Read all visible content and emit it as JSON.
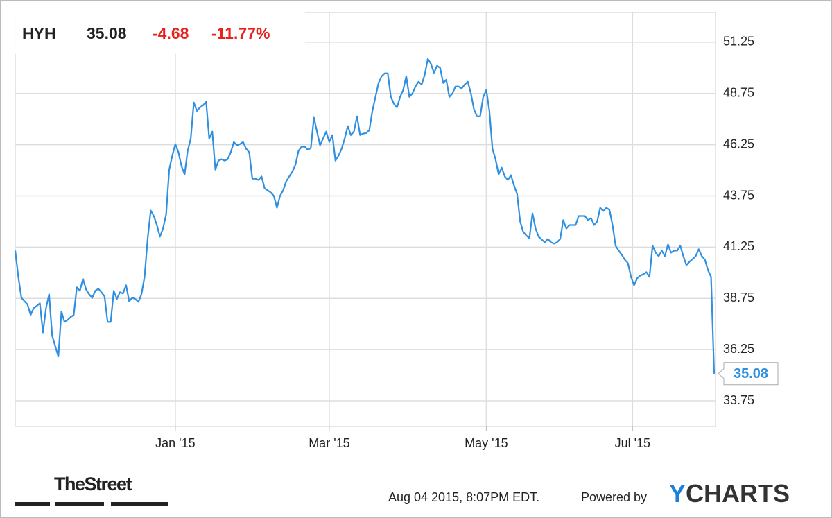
{
  "chart_data": {
    "type": "line",
    "ticker": "HYH",
    "price": "35.08",
    "change": "-4.68",
    "change_pct": "-11.77%",
    "series": [
      {
        "color": "#2f8fe0",
        "values": [
          41.08,
          39.8,
          38.78,
          38.61,
          38.45,
          37.94,
          38.28,
          38.38,
          38.51,
          37.09,
          38.28,
          38.95,
          36.92,
          36.42,
          35.91,
          38.11,
          37.6,
          37.7,
          37.84,
          37.94,
          39.29,
          39.12,
          39.7,
          39.19,
          38.95,
          38.78,
          39.12,
          39.22,
          39.05,
          38.85,
          37.6,
          37.6,
          39.12,
          38.72,
          39.05,
          38.99,
          39.39,
          38.61,
          38.78,
          38.72,
          38.58,
          38.95,
          39.8,
          41.65,
          43.04,
          42.77,
          42.33,
          41.76,
          42.16,
          42.84,
          45.03,
          45.71,
          46.28,
          45.88,
          45.2,
          44.8,
          45.95,
          46.55,
          48.31,
          47.9,
          48.07,
          48.17,
          48.34,
          46.55,
          46.89,
          45.03,
          45.47,
          45.54,
          45.47,
          45.54,
          45.88,
          46.38,
          46.22,
          46.28,
          46.38,
          46.05,
          45.88,
          44.59,
          44.59,
          44.53,
          44.7,
          44.12,
          44.02,
          43.92,
          43.75,
          43.17,
          43.75,
          44.02,
          44.46,
          44.7,
          44.93,
          45.27,
          45.95,
          46.15,
          46.15,
          46.01,
          46.08,
          47.57,
          46.89,
          46.22,
          46.55,
          46.89,
          46.38,
          46.72,
          45.47,
          45.71,
          46.05,
          46.55,
          47.16,
          46.72,
          46.89,
          47.63,
          46.72,
          46.79,
          46.82,
          46.96,
          47.9,
          48.58,
          49.26,
          49.59,
          49.73,
          49.73,
          48.58,
          48.24,
          48.07,
          48.58,
          48.92,
          49.59,
          48.58,
          48.75,
          49.09,
          49.32,
          49.19,
          49.66,
          50.44,
          50.2,
          49.76,
          50.1,
          50.0,
          49.26,
          49.42,
          48.58,
          48.75,
          49.09,
          49.09,
          48.99,
          49.19,
          49.32,
          48.75,
          47.97,
          47.63,
          47.63,
          48.58,
          48.92,
          47.9,
          46.05,
          45.54,
          44.8,
          45.13,
          44.7,
          44.53,
          44.76,
          44.26,
          43.85,
          42.5,
          41.99,
          41.82,
          41.69,
          42.9,
          42.16,
          41.76,
          41.62,
          41.49,
          41.65,
          41.49,
          41.42,
          41.49,
          41.65,
          42.57,
          42.16,
          42.33,
          42.33,
          42.33,
          42.77,
          42.77,
          42.77,
          42.57,
          42.67,
          42.33,
          42.5,
          43.17,
          43.01,
          43.17,
          43.07,
          42.33,
          41.32,
          41.08,
          40.88,
          40.64,
          40.47,
          39.8,
          39.39,
          39.73,
          39.86,
          39.93,
          40.03,
          39.8,
          41.32,
          40.98,
          40.81,
          41.08,
          40.81,
          41.38,
          40.98,
          41.08,
          41.08,
          41.32,
          40.81,
          40.37,
          40.54,
          40.67,
          40.81,
          41.15,
          40.81,
          40.64,
          40.13,
          39.8,
          35.08
        ]
      }
    ],
    "xlim": [
      0,
      227
    ],
    "xticks": [
      {
        "value": 52,
        "label": "Jan '15"
      },
      {
        "value": 102,
        "label": "Mar '15"
      },
      {
        "value": 153,
        "label": "May '15"
      },
      {
        "value": 200.5,
        "label": "Jul '15"
      }
    ],
    "ylim": [
      32.5,
      52.7
    ],
    "yticks": [
      33.75,
      36.25,
      38.75,
      41.25,
      43.75,
      46.25,
      48.75,
      51.25
    ],
    "grid": true,
    "timestamp": "Aug 04 2015, 8:07PM EDT.",
    "powered_by": "Powered by",
    "brand": "YCHARTS",
    "publisher": "TheStreet"
  }
}
